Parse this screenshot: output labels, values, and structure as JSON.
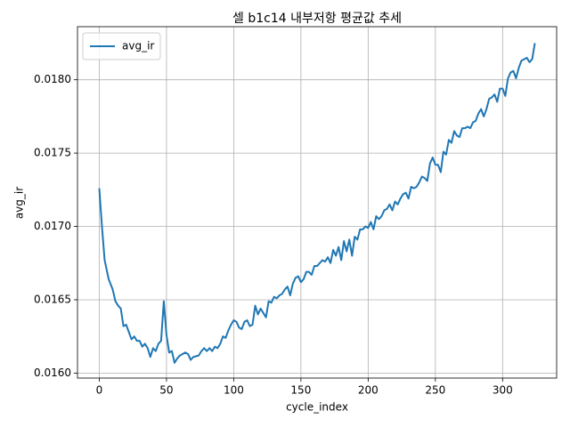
{
  "chart_data": {
    "type": "line",
    "title": "셀 b1c14 내부저항 평균값 추세",
    "x_label": "cycle_index",
    "y_label": "avg_ir",
    "x": [
      0,
      2,
      4,
      7,
      10,
      12,
      14,
      16,
      18,
      20,
      22,
      24,
      26,
      28,
      30,
      32,
      34,
      36,
      38,
      40,
      42,
      44,
      46,
      48,
      50,
      52,
      54,
      56,
      58,
      60,
      64,
      66,
      68,
      70,
      74,
      76,
      78,
      80,
      82,
      84,
      86,
      88,
      90,
      92,
      94,
      96,
      98,
      100,
      102,
      104,
      106,
      108,
      110,
      112,
      114,
      116,
      118,
      120,
      122,
      124,
      126,
      128,
      130,
      132,
      134,
      136,
      138,
      140,
      142,
      144,
      146,
      148,
      150,
      152,
      154,
      156,
      158,
      160,
      162,
      164,
      166,
      168,
      170,
      172,
      174,
      176,
      178,
      180,
      182,
      184,
      186,
      188,
      190,
      192,
      194,
      196,
      198,
      200,
      202,
      204,
      206,
      208,
      210,
      212,
      214,
      216,
      218,
      220,
      222,
      224,
      226,
      228,
      230,
      232,
      234,
      236,
      238,
      240,
      242,
      244,
      246,
      248,
      250,
      252,
      254,
      256,
      258,
      260,
      262,
      264,
      266,
      268,
      270,
      272,
      274,
      276,
      278,
      280,
      282,
      284,
      286,
      288,
      290,
      292,
      294,
      296,
      298,
      300,
      302,
      304,
      306,
      308,
      310,
      312,
      314,
      316,
      318,
      320,
      322,
      324
    ],
    "series": [
      {
        "name": "avg_ir",
        "color": "#1f77b4",
        "values": [
          0.01726,
          0.017,
          0.01677,
          0.01664,
          0.01657,
          0.01649,
          0.01646,
          0.01644,
          0.01632,
          0.01633,
          0.01628,
          0.01623,
          0.01625,
          0.01622,
          0.01622,
          0.01618,
          0.0162,
          0.01617,
          0.01611,
          0.01617,
          0.01615,
          0.0162,
          0.01622,
          0.01649,
          0.01626,
          0.01614,
          0.01615,
          0.01607,
          0.0161,
          0.01612,
          0.01614,
          0.01613,
          0.01609,
          0.01611,
          0.01612,
          0.01615,
          0.01617,
          0.01615,
          0.01617,
          0.01615,
          0.01618,
          0.01617,
          0.0162,
          0.01625,
          0.01624,
          0.01629,
          0.01633,
          0.01636,
          0.01635,
          0.01631,
          0.0163,
          0.01635,
          0.01636,
          0.01632,
          0.01633,
          0.01646,
          0.0164,
          0.01644,
          0.01641,
          0.01638,
          0.01649,
          0.01648,
          0.01652,
          0.01651,
          0.01653,
          0.01654,
          0.01657,
          0.01659,
          0.01653,
          0.01661,
          0.01665,
          0.01666,
          0.01662,
          0.01664,
          0.01669,
          0.01669,
          0.01667,
          0.01673,
          0.01673,
          0.01675,
          0.01677,
          0.01676,
          0.01679,
          0.01675,
          0.01684,
          0.0168,
          0.01686,
          0.01677,
          0.0169,
          0.01683,
          0.01691,
          0.0168,
          0.01693,
          0.01691,
          0.01698,
          0.01698,
          0.017,
          0.01699,
          0.01703,
          0.01698,
          0.01707,
          0.01705,
          0.01707,
          0.01711,
          0.01712,
          0.01715,
          0.01711,
          0.01717,
          0.01715,
          0.01719,
          0.01722,
          0.01723,
          0.01719,
          0.01727,
          0.01726,
          0.01727,
          0.0173,
          0.01734,
          0.01733,
          0.01731,
          0.01743,
          0.01747,
          0.01742,
          0.01742,
          0.01737,
          0.01751,
          0.01749,
          0.01759,
          0.01757,
          0.01765,
          0.01762,
          0.01761,
          0.01767,
          0.01767,
          0.01768,
          0.01767,
          0.01771,
          0.01772,
          0.01777,
          0.0178,
          0.01775,
          0.0178,
          0.01787,
          0.01788,
          0.0179,
          0.01785,
          0.01794,
          0.01794,
          0.01789,
          0.01801,
          0.01805,
          0.01806,
          0.01801,
          0.01808,
          0.01813,
          0.01814,
          0.01815,
          0.01812,
          0.01814,
          0.01825
        ]
      }
    ],
    "xlim": [
      -16.2,
      340.2
    ],
    "xticks": [
      0,
      50,
      100,
      150,
      200,
      250,
      300
    ],
    "ylim": [
      0.015966,
      0.018362
    ],
    "yticks": [
      {
        "value": 0.016,
        "label": "0.0160"
      },
      0.0165,
      {
        "value": 0.017,
        "label": "0.0170"
      },
      0.0175,
      {
        "value": 0.018,
        "label": "0.0180"
      }
    ],
    "grid": true,
    "legend": "upper left"
  }
}
